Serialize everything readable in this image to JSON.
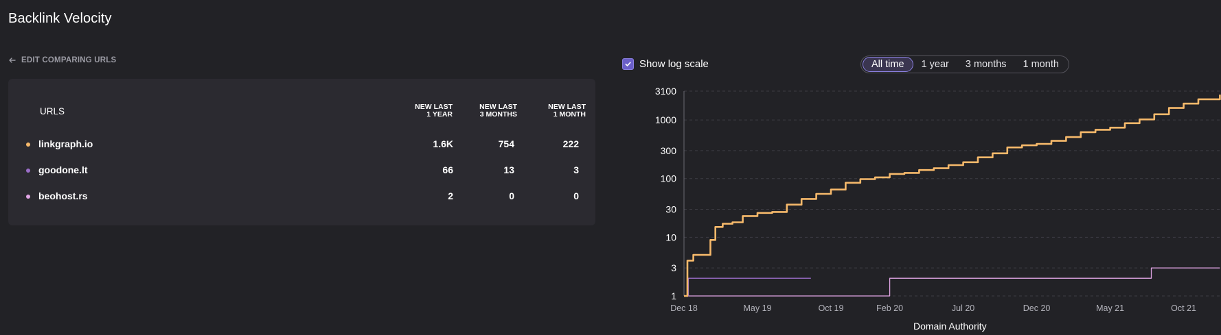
{
  "header": {
    "title": "Backlink Velocity"
  },
  "back_link": {
    "label": "EDIT COMPARING URLS",
    "icon": "arrow-left-icon"
  },
  "table": {
    "url_header": "URLS",
    "columns": [
      {
        "line1": "NEW LAST",
        "line2": "1 YEAR"
      },
      {
        "line1": "NEW LAST",
        "line2": "3 MONTHS"
      },
      {
        "line1": "NEW LAST",
        "line2": "1 MONTH"
      }
    ],
    "rows": [
      {
        "url": "linkgraph.io",
        "color": "#f6b96b",
        "last_1_year": "1.6K",
        "last_3_months": "754",
        "last_1_month": "222"
      },
      {
        "url": "goodone.lt",
        "color": "#9b6ec9",
        "last_1_year": "66",
        "last_3_months": "13",
        "last_1_month": "3"
      },
      {
        "url": "beohost.rs",
        "color": "#e2a6e6",
        "last_1_year": "2",
        "last_3_months": "0",
        "last_1_month": "0"
      }
    ]
  },
  "controls": {
    "log_scale_label": "Show log scale",
    "log_scale_checked": true,
    "time_ranges": [
      "All time",
      "1 year",
      "3 months",
      "1 month"
    ],
    "active_time_range": "All time"
  },
  "chart_data": {
    "type": "line",
    "xlabel": "Domain Authority",
    "y_scale": "log",
    "y_ticks": [
      "3100",
      "1000",
      "300",
      "100",
      "30",
      "10",
      "3",
      "1"
    ],
    "x_ticks": [
      "Dec 18",
      "May 19",
      "Oct 19",
      "Feb 20",
      "Jul 20",
      "Dec 20",
      "May 21",
      "Oct 21"
    ],
    "grid": true,
    "series": [
      {
        "name": "linkgraph.io",
        "color": "#f6b96b",
        "points": [
          [
            "2018-12-01",
            1
          ],
          [
            "2018-12-08",
            4
          ],
          [
            "2018-12-20",
            5
          ],
          [
            "2019-01-20",
            5
          ],
          [
            "2019-01-25",
            9
          ],
          [
            "2019-02-05",
            15
          ],
          [
            "2019-02-20",
            17
          ],
          [
            "2019-03-10",
            18
          ],
          [
            "2019-04-01",
            23
          ],
          [
            "2019-05-01",
            26
          ],
          [
            "2019-06-01",
            27
          ],
          [
            "2019-07-01",
            36
          ],
          [
            "2019-08-01",
            45
          ],
          [
            "2019-09-01",
            55
          ],
          [
            "2019-10-01",
            65
          ],
          [
            "2019-11-01",
            85
          ],
          [
            "2019-12-01",
            98
          ],
          [
            "2020-01-01",
            105
          ],
          [
            "2020-02-01",
            120
          ],
          [
            "2020-03-01",
            125
          ],
          [
            "2020-04-01",
            140
          ],
          [
            "2020-05-01",
            150
          ],
          [
            "2020-06-01",
            170
          ],
          [
            "2020-07-01",
            190
          ],
          [
            "2020-08-01",
            230
          ],
          [
            "2020-09-01",
            270
          ],
          [
            "2020-10-01",
            340
          ],
          [
            "2020-11-01",
            370
          ],
          [
            "2020-12-01",
            390
          ],
          [
            "2021-01-01",
            440
          ],
          [
            "2021-02-01",
            510
          ],
          [
            "2021-03-01",
            620
          ],
          [
            "2021-04-01",
            680
          ],
          [
            "2021-05-01",
            740
          ],
          [
            "2021-06-01",
            880
          ],
          [
            "2021-07-01",
            1020
          ],
          [
            "2021-08-01",
            1250
          ],
          [
            "2021-09-01",
            1600
          ],
          [
            "2021-10-01",
            1900
          ],
          [
            "2021-11-01",
            2250
          ],
          [
            "2021-12-15",
            2700
          ]
        ]
      },
      {
        "name": "goodone.lt",
        "color": "#9b6ec9",
        "points": [
          [
            "2018-12-01",
            1
          ],
          [
            "2018-12-10",
            1
          ],
          [
            "2018-12-10",
            2
          ],
          [
            "2019-08-20",
            2
          ]
        ]
      },
      {
        "name": "beohost.rs",
        "color": "#e2a6e6",
        "points": [
          [
            "2018-12-01",
            1
          ],
          [
            "2020-02-01",
            1
          ],
          [
            "2020-02-01",
            2
          ],
          [
            "2021-07-25",
            2
          ],
          [
            "2021-07-25",
            3
          ],
          [
            "2021-12-15",
            3
          ]
        ]
      }
    ]
  }
}
